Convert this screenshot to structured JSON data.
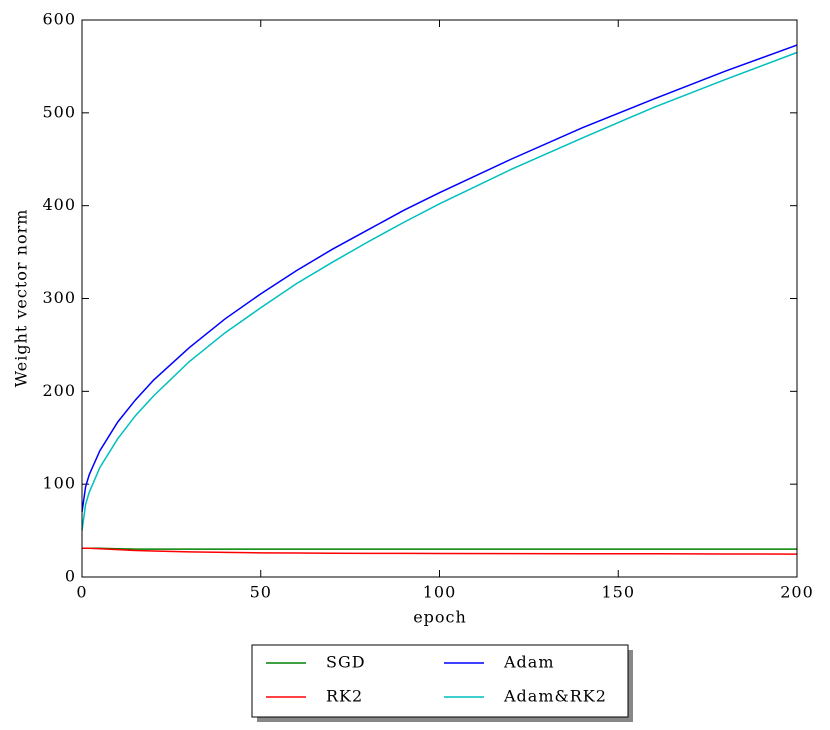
{
  "chart_data": {
    "type": "line",
    "x": [
      0,
      1,
      2,
      5,
      10,
      15,
      20,
      30,
      40,
      50,
      60,
      70,
      80,
      90,
      100,
      120,
      140,
      160,
      180,
      200
    ],
    "series": [
      {
        "name": "SGD",
        "color": "#008000",
        "values": [
          31,
          31,
          31,
          31,
          30.5,
          30,
          30,
          30,
          30,
          30,
          30,
          30,
          30,
          30,
          30,
          30,
          30,
          30,
          30,
          30
        ]
      },
      {
        "name": "RK2",
        "color": "#ff0000",
        "values": [
          31,
          31,
          31,
          30.5,
          29.5,
          28.5,
          28,
          27,
          26.5,
          26,
          25.8,
          25.6,
          25.5,
          25.4,
          25.3,
          25.2,
          25,
          25,
          24.8,
          24.7
        ]
      },
      {
        "name": "Adam",
        "color": "#0000ff",
        "values": [
          70,
          97,
          110,
          136,
          167,
          191,
          212,
          247,
          278,
          305,
          330,
          353,
          374,
          395,
          414,
          450,
          484,
          515,
          545,
          573
        ]
      },
      {
        "name": "Adam&RK2",
        "color": "#00bfbf",
        "values": [
          50,
          78,
          91,
          118,
          149,
          174,
          195,
          232,
          263,
          290,
          316,
          339,
          361,
          382,
          402,
          439,
          473,
          506,
          536,
          565
        ]
      }
    ],
    "x_label": "epoch",
    "y_label": "Weight vector norm",
    "xlim": [
      0,
      200
    ],
    "xticks": [
      0,
      50,
      100,
      150,
      200
    ],
    "ylim": [
      0,
      600
    ],
    "yticks": [
      0,
      100,
      200,
      300,
      400,
      500,
      600
    ],
    "legend_position": "below"
  }
}
